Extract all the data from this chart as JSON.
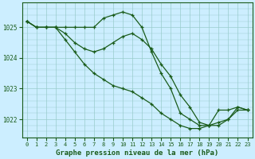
{
  "title": "Graphe pression niveau de la mer (hPa)",
  "bg_color": "#cceeff",
  "grid_color": "#99cccc",
  "line_color": "#1a5c1a",
  "xlim": [
    -0.5,
    23.5
  ],
  "ylim": [
    1021.4,
    1025.8
  ],
  "yticks": [
    1022,
    1023,
    1024,
    1025
  ],
  "xticks": [
    0,
    1,
    2,
    3,
    4,
    5,
    6,
    7,
    8,
    9,
    10,
    11,
    12,
    13,
    14,
    15,
    16,
    17,
    18,
    19,
    20,
    21,
    22,
    23
  ],
  "series": [
    [
      1025.2,
      1025.0,
      1025.0,
      1025.0,
      1025.0,
      1025.0,
      1025.0,
      1025.0,
      1025.3,
      1025.4,
      1025.5,
      1025.4,
      1025.0,
      1024.2,
      1023.5,
      1023.0,
      1022.2,
      1022.0,
      1021.8,
      1021.8,
      1022.3,
      1022.3,
      1022.4,
      1022.3
    ],
    [
      1025.2,
      1025.0,
      1025.0,
      1025.0,
      1024.8,
      1024.5,
      1024.3,
      1024.2,
      1024.3,
      1024.5,
      1024.7,
      1024.8,
      1024.6,
      1024.3,
      1023.8,
      1023.4,
      1022.8,
      1022.4,
      1021.9,
      1021.8,
      1021.8,
      1022.0,
      1022.4,
      1022.3
    ],
    [
      1025.2,
      1025.0,
      1025.0,
      1025.0,
      1024.6,
      1024.2,
      1023.8,
      1023.5,
      1023.3,
      1023.1,
      1023.0,
      1022.9,
      1022.7,
      1022.5,
      1022.2,
      1022.0,
      1021.8,
      1021.7,
      1021.7,
      1021.8,
      1021.9,
      1022.0,
      1022.3,
      1022.3
    ]
  ]
}
